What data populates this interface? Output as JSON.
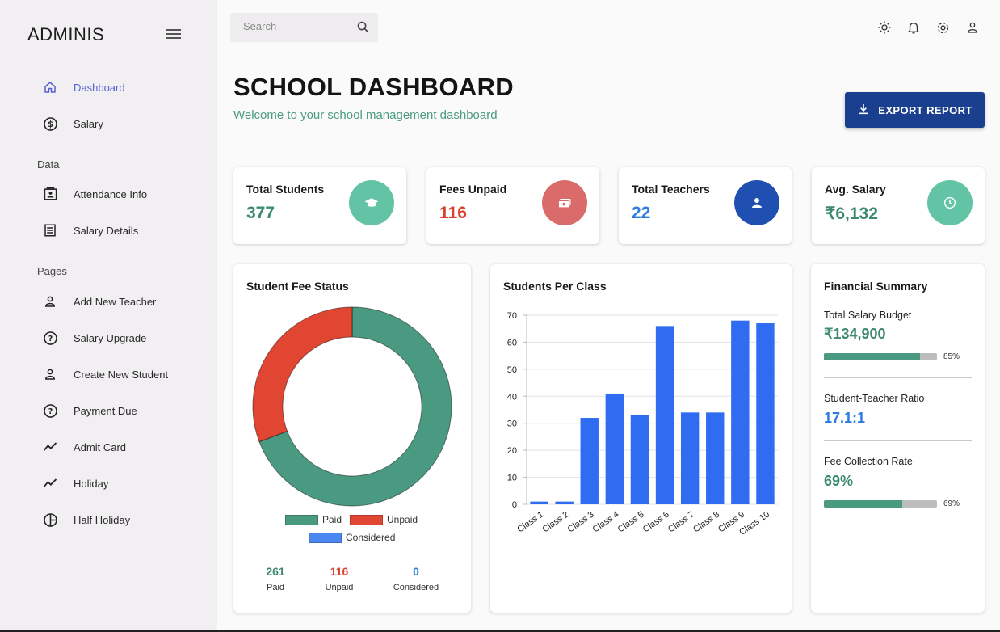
{
  "sidebar": {
    "brand": "ADMINIS",
    "items_top": [
      {
        "label": "Dashboard",
        "icon": "home-icon"
      },
      {
        "label": "Salary",
        "icon": "dollar-circle-icon"
      }
    ],
    "section_data": "Data",
    "items_data": [
      {
        "label": "Attendance Info",
        "icon": "contact-card-icon"
      },
      {
        "label": "Salary Details",
        "icon": "receipt-icon"
      }
    ],
    "section_pages": "Pages",
    "items_pages": [
      {
        "label": "Add New Teacher",
        "icon": "person-icon"
      },
      {
        "label": "Salary Upgrade",
        "icon": "help-circle-icon"
      },
      {
        "label": "Create New Student",
        "icon": "person-icon"
      },
      {
        "label": "Payment Due",
        "icon": "help-circle-icon"
      },
      {
        "label": "Admit Card",
        "icon": "trend-line-icon"
      },
      {
        "label": "Holiday",
        "icon": "trend-line-icon"
      },
      {
        "label": "Half Holiday",
        "icon": "pie-chart-icon"
      }
    ]
  },
  "topbar": {
    "search_placeholder": "Search",
    "icons": [
      "sun-icon",
      "bell-icon",
      "gear-icon",
      "user-icon"
    ]
  },
  "header": {
    "title": "SCHOOL DASHBOARD",
    "subtitle": "Welcome to your school management dashboard",
    "export_label": "EXPORT REPORT"
  },
  "stats": [
    {
      "label": "Total Students",
      "value": "377",
      "color": "#3d8b6f",
      "icon": "graduation-cap-icon",
      "icon_bg": "#62c4a4"
    },
    {
      "label": "Fees Unpaid",
      "value": "116",
      "color": "#d9412c",
      "icon": "cash-icon",
      "icon_bg": "#d96b6b"
    },
    {
      "label": "Total Teachers",
      "value": "22",
      "color": "#2e7be0",
      "icon": "person-icon",
      "icon_bg": "#1f4fb0"
    },
    {
      "label": "Avg. Salary",
      "value": "₹6,132",
      "color": "#3d8b6f",
      "icon": "clock-icon",
      "icon_bg": "#62c4a4"
    }
  ],
  "fee_status": {
    "title": "Student Fee Status",
    "legend": [
      {
        "label": "Paid",
        "color": "#4a9a81"
      },
      {
        "label": "Unpaid",
        "color": "#e04631"
      },
      {
        "label": "Considered",
        "color": "#4a87f0"
      }
    ],
    "stats": [
      {
        "value": "261",
        "label": "Paid",
        "color": "#3d8b6f"
      },
      {
        "value": "116",
        "label": "Unpaid",
        "color": "#d9412c"
      },
      {
        "value": "0",
        "label": "Considered",
        "color": "#2e7be0"
      }
    ]
  },
  "class_chart": {
    "title": "Students Per Class"
  },
  "financial": {
    "title": "Financial Summary",
    "budget_label": "Total Salary Budget",
    "budget_value": "₹134,900",
    "budget_pct": 85,
    "budget_pct_label": "85%",
    "ratio_label": "Student-Teacher Ratio",
    "ratio_value": "17.1:1",
    "collection_label": "Fee Collection Rate",
    "collection_value": "69%",
    "collection_pct": 69,
    "collection_pct_label": "69%"
  },
  "chart_data": [
    {
      "type": "pie",
      "title": "Student Fee Status",
      "categories": [
        "Paid",
        "Unpaid",
        "Considered"
      ],
      "values": [
        261,
        116,
        0
      ],
      "colors": [
        "#4a9a81",
        "#e04631",
        "#4a87f0"
      ]
    },
    {
      "type": "bar",
      "title": "Students Per Class",
      "categories": [
        "Class 1",
        "Class 2",
        "Class 3",
        "Class 4",
        "Class 5",
        "Class 6",
        "Class 7",
        "Class 8",
        "Class 9",
        "Class 10"
      ],
      "values": [
        1,
        1,
        32,
        41,
        33,
        66,
        34,
        34,
        68,
        67
      ],
      "ylim": [
        0,
        70
      ],
      "yticks": [
        0,
        10,
        20,
        30,
        40,
        50,
        60,
        70
      ],
      "color": "#2f6cf2",
      "grid": true
    }
  ]
}
